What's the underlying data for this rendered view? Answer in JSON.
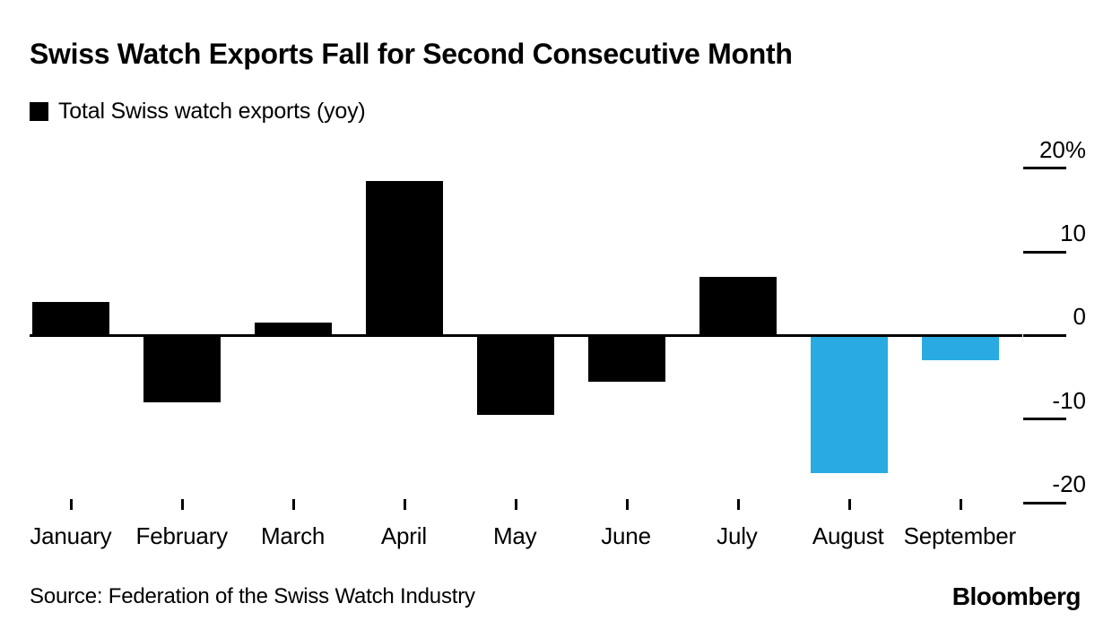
{
  "header": {
    "title": "Swiss Watch Exports Fall for Second Consecutive Month"
  },
  "legend": {
    "label": "Total Swiss watch exports (yoy)",
    "swatch_color": "#000000"
  },
  "chart_data": {
    "type": "bar",
    "title": "Swiss Watch Exports Fall for Second Consecutive Month",
    "series_name": "Total Swiss watch exports (yoy)",
    "categories": [
      "January",
      "February",
      "March",
      "April",
      "May",
      "June",
      "July",
      "August",
      "September"
    ],
    "values": [
      4,
      -8,
      1.5,
      18.5,
      -9.5,
      -5.5,
      7,
      -16.5,
      -3
    ],
    "bar_colors": [
      "#000000",
      "#000000",
      "#000000",
      "#000000",
      "#000000",
      "#000000",
      "#000000",
      "#29ABE2",
      "#29ABE2"
    ],
    "unit": "%",
    "ylim": [
      -21.5,
      23.5
    ],
    "yticks": [
      {
        "value": 20,
        "label": "20%"
      },
      {
        "value": 10,
        "label": "10"
      },
      {
        "value": 0,
        "label": "0"
      },
      {
        "value": -10,
        "label": "-10"
      },
      {
        "value": -20,
        "label": "-20"
      }
    ],
    "grid": false,
    "axis_side": "right",
    "legend_position": "top-left",
    "colors": {
      "default": "#000000",
      "highlight": "#29ABE2"
    }
  },
  "footer": {
    "source": "Source: Federation of the Swiss Watch Industry",
    "brand": "Bloomberg"
  }
}
